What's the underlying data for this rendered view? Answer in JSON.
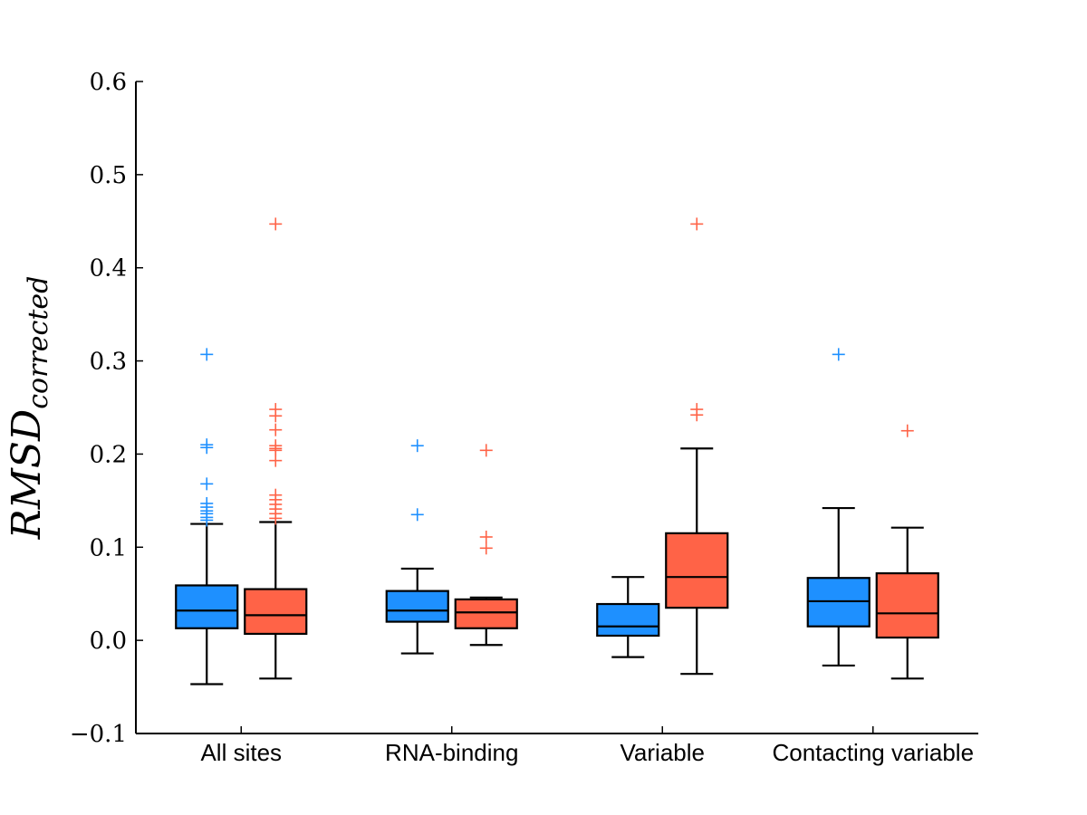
{
  "chart_data": {
    "type": "box",
    "title": "",
    "ylabel_main": "RMSD",
    "ylabel_sub": "corrected",
    "ylim": [
      -0.1,
      0.6
    ],
    "yticks": [
      -0.1,
      0.0,
      0.1,
      0.2,
      0.3,
      0.4,
      0.5,
      0.6
    ],
    "ytick_labels": [
      "−0.1",
      "0.0",
      "0.1",
      "0.2",
      "0.3",
      "0.4",
      "0.5",
      "0.6"
    ],
    "categories": [
      "All sites",
      "RNA-binding",
      "Variable",
      "Contacting variable"
    ],
    "colors": [
      "#1e90ff",
      "#ff6347"
    ],
    "boxes": [
      [
        {
          "whisker_low": -0.047,
          "q1": 0.013,
          "median": 0.032,
          "q3": 0.059,
          "whisker_high": 0.125,
          "outliers": [
            0.307,
            0.21,
            0.207,
            0.168,
            0.147,
            0.143,
            0.139,
            0.136,
            0.132,
            0.129
          ]
        },
        {
          "whisker_low": -0.041,
          "q1": 0.007,
          "median": 0.027,
          "q3": 0.055,
          "whisker_high": 0.127,
          "outliers": [
            0.447,
            0.248,
            0.241,
            0.226,
            0.209,
            0.206,
            0.204,
            0.193,
            0.156,
            0.151,
            0.146,
            0.141,
            0.136,
            0.131
          ]
        }
      ],
      [
        {
          "whisker_low": -0.014,
          "q1": 0.02,
          "median": 0.032,
          "q3": 0.053,
          "whisker_high": 0.077,
          "outliers": [
            0.209,
            0.135
          ]
        },
        {
          "whisker_low": -0.005,
          "q1": 0.013,
          "median": 0.03,
          "q3": 0.044,
          "whisker_high": 0.046,
          "outliers": [
            0.204,
            0.111,
            0.099
          ]
        }
      ],
      [
        {
          "whisker_low": -0.018,
          "q1": 0.005,
          "median": 0.015,
          "q3": 0.039,
          "whisker_high": 0.068,
          "outliers": []
        },
        {
          "whisker_low": -0.036,
          "q1": 0.035,
          "median": 0.068,
          "q3": 0.115,
          "whisker_high": 0.206,
          "outliers": [
            0.447,
            0.248,
            0.242
          ]
        }
      ],
      [
        {
          "whisker_low": -0.027,
          "q1": 0.015,
          "median": 0.042,
          "q3": 0.067,
          "whisker_high": 0.142,
          "outliers": [
            0.307
          ]
        },
        {
          "whisker_low": -0.041,
          "q1": 0.003,
          "median": 0.029,
          "q3": 0.072,
          "whisker_high": 0.121,
          "outliers": [
            0.225
          ]
        }
      ]
    ],
    "grid": false,
    "legend": "none"
  }
}
